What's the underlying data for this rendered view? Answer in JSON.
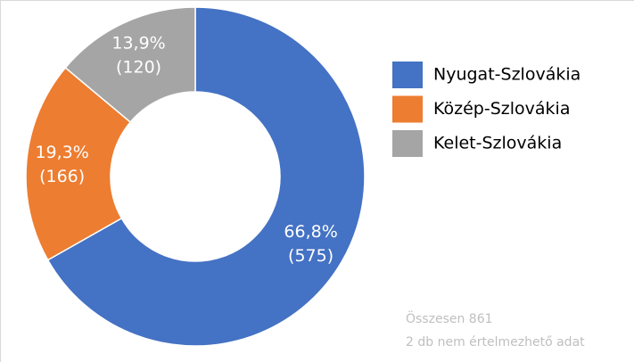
{
  "chart_data": {
    "type": "donut",
    "categories": [
      "Nyugat-Szlovákia",
      "Közép-Szlovákia",
      "Kelet-Szlovákia"
    ],
    "values": [
      66.8,
      19.3,
      13.9
    ],
    "value_labels": [
      "66,8%",
      "19,3%",
      "13,9%"
    ],
    "count_labels": [
      "(575)",
      "(166)",
      "(120)"
    ],
    "colors": [
      "#4472c4",
      "#ed7d31",
      "#a5a5a5"
    ],
    "legend": "right",
    "footnotes": [
      "Összesen 861",
      "2 db nem értelmezhető adat"
    ]
  }
}
